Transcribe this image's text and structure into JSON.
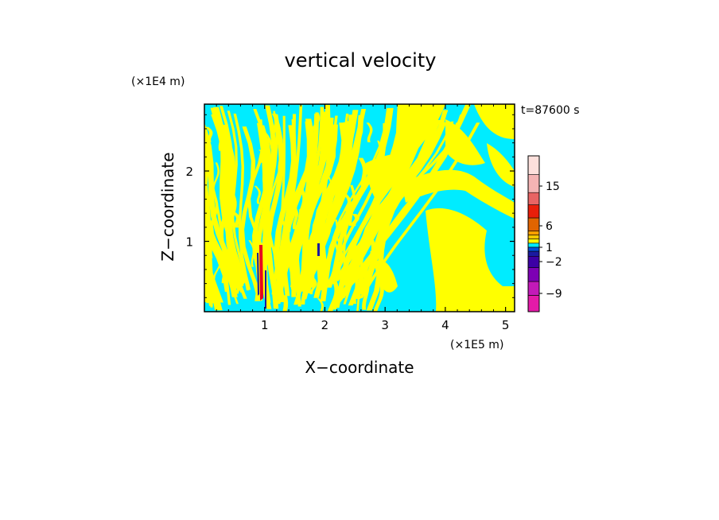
{
  "chart_data": {
    "type": "heatmap",
    "title": "vertical velocity",
    "xlabel": "X−coordinate",
    "ylabel": "Z−coordinate",
    "x_unit": "(×1E5 m)",
    "y_unit": "(×1E4 m)",
    "time_label": "t=87600 s",
    "xlim": [
      0,
      5.15
    ],
    "ylim": [
      0,
      2.95
    ],
    "x_ticks": [
      1,
      2,
      3,
      4,
      5
    ],
    "y_ticks": [
      1,
      2
    ],
    "x_tick_labels": [
      "1",
      "2",
      "3",
      "4",
      "5"
    ],
    "y_tick_labels": [
      "1",
      "2"
    ],
    "field_colors": {
      "positive": "#ffff00",
      "negative": "#00ecff",
      "strong_positive": "#e8001e",
      "strong_negative": "#1a1aa0"
    },
    "colorbar": {
      "levels": [
        {
          "color": "#e41aa8"
        },
        {
          "color": "#c31ab8"
        },
        {
          "color": "#7d00b4"
        },
        {
          "color": "#3c00a5"
        },
        {
          "color": "#1a1aa0"
        },
        {
          "color": "#0050d8"
        },
        {
          "color": "#00ecff"
        },
        {
          "color": "#ffff00"
        },
        {
          "color": "#f2c800"
        },
        {
          "color": "#ffa000"
        },
        {
          "color": "#e06400"
        },
        {
          "color": "#e81e0a"
        },
        {
          "color": "#e86464"
        },
        {
          "color": "#f4b4b4"
        },
        {
          "color": "#fde0dc"
        }
      ],
      "tick_labels": [
        "15",
        "6",
        "1",
        "−2",
        "−9"
      ],
      "tick_values": [
        15,
        6,
        1,
        -2,
        -9
      ]
    },
    "legend": "right"
  }
}
